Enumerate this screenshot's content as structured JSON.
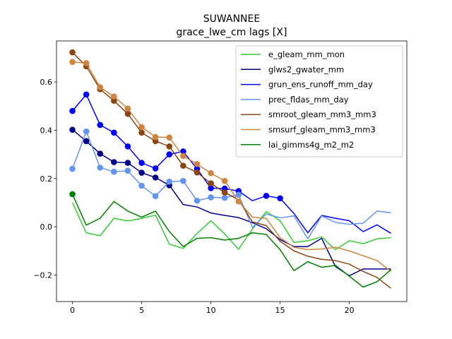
{
  "chart_data": {
    "type": "line",
    "title": "SUWANNEE",
    "subtitle": "grace_lwe_cm lags [X]",
    "xlabel": "",
    "ylabel": "",
    "xlim": [
      -1.15,
      24.15
    ],
    "ylim": [
      -0.31,
      0.77
    ],
    "x_ticks": [
      0,
      5,
      10,
      15,
      20
    ],
    "y_ticks": [
      -0.2,
      0.0,
      0.2,
      0.4,
      0.6
    ],
    "y_tick_labels": [
      "−0.2",
      "0.0",
      "0.2",
      "0.4",
      "0.6"
    ],
    "grid": false,
    "legend_position": "top-right",
    "series": [
      {
        "name": "e_gleam_mm_mon",
        "color": "#32cd32",
        "values": [
          0.1,
          -0.025,
          -0.037,
          0.035,
          0.024,
          0.035,
          0.048,
          -0.072,
          -0.09,
          -0.028,
          0.025,
          -0.03,
          -0.093,
          -0.01,
          0.063,
          0.025,
          -0.065,
          -0.058,
          -0.042,
          -0.095,
          -0.058,
          -0.07,
          -0.05,
          -0.045
        ],
        "markers": []
      },
      {
        "name": "glws2_gwater_mm",
        "color": "#00008b",
        "values": [
          0.402,
          0.355,
          0.303,
          0.268,
          0.265,
          0.224,
          0.204,
          0.172,
          0.092,
          0.082,
          0.057,
          0.047,
          0.038,
          0.017,
          -0.008,
          -0.053,
          -0.082,
          -0.082,
          -0.048,
          -0.165,
          -0.203,
          -0.175,
          -0.175,
          -0.175
        ],
        "markers": [
          0,
          1,
          2,
          3,
          4,
          5,
          6,
          7
        ]
      },
      {
        "name": "grun_ens_runoff_mm_day",
        "color": "#0000ff",
        "values": [
          0.48,
          0.548,
          0.422,
          0.39,
          0.333,
          0.265,
          0.242,
          0.3,
          0.312,
          0.24,
          0.16,
          0.158,
          0.148,
          0.108,
          0.128,
          0.118,
          0.055,
          -0.025,
          0.047,
          0.035,
          0.025,
          -0.02,
          0.008,
          -0.027
        ],
        "markers": [
          0,
          1,
          2,
          3,
          4,
          5,
          6,
          7,
          8,
          9,
          10,
          11,
          12,
          14,
          15
        ]
      },
      {
        "name": "prec_fldas_mm_day",
        "color": "#6495ed",
        "values": [
          0.24,
          0.395,
          0.245,
          0.228,
          0.232,
          0.17,
          0.127,
          0.187,
          0.19,
          0.108,
          0.122,
          0.12,
          0.133,
          -0.003,
          0.053,
          0.037,
          0.045,
          -0.05,
          0.045,
          0.018,
          0.01,
          0.015,
          0.065,
          0.058
        ],
        "markers": [
          0,
          1,
          2,
          3,
          4,
          5,
          6,
          7,
          8,
          9,
          10,
          11,
          12
        ]
      },
      {
        "name": "smroot_gleam_mm3_mm3",
        "color": "#8b4513",
        "values": [
          0.723,
          0.665,
          0.57,
          0.522,
          0.468,
          0.39,
          0.355,
          0.333,
          0.253,
          0.225,
          0.18,
          0.142,
          0.112,
          0.02,
          0.005,
          -0.06,
          -0.1,
          -0.122,
          -0.135,
          -0.14,
          -0.155,
          -0.185,
          -0.21,
          -0.255
        ],
        "markers": [
          0,
          1,
          2,
          3,
          4,
          5,
          6,
          7,
          8,
          9,
          10,
          11
        ]
      },
      {
        "name": "smsurf_gleam_mm3_mm3",
        "color": "#cd853f",
        "values": [
          0.683,
          0.678,
          0.578,
          0.54,
          0.49,
          0.413,
          0.372,
          0.37,
          0.293,
          0.26,
          0.222,
          0.19,
          0.105,
          0.04,
          0.035,
          -0.045,
          -0.085,
          -0.095,
          -0.092,
          -0.085,
          -0.1,
          -0.12,
          -0.14,
          -0.185
        ],
        "markers": [
          0,
          1,
          2,
          3,
          4,
          5,
          6,
          7,
          8,
          9,
          10,
          11,
          12
        ]
      },
      {
        "name": "lai_gimms4g_m2_m2",
        "color": "#008000",
        "values": [
          0.135,
          0.007,
          0.035,
          0.105,
          0.065,
          0.04,
          0.065,
          -0.02,
          -0.082,
          -0.048,
          -0.045,
          -0.055,
          -0.048,
          -0.025,
          -0.032,
          -0.095,
          -0.182,
          -0.145,
          -0.168,
          -0.16,
          -0.205,
          -0.25,
          -0.228,
          -0.178
        ],
        "markers": [
          0
        ]
      }
    ]
  }
}
